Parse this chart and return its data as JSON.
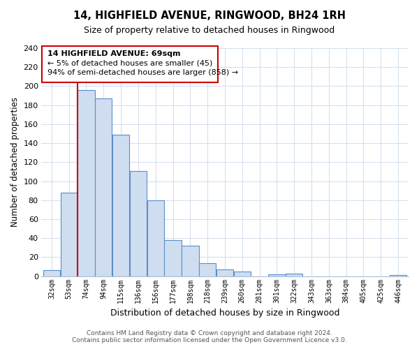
{
  "title": "14, HIGHFIELD AVENUE, RINGWOOD, BH24 1RH",
  "subtitle": "Size of property relative to detached houses in Ringwood",
  "xlabel": "Distribution of detached houses by size in Ringwood",
  "ylabel": "Number of detached properties",
  "bin_labels": [
    "32sqm",
    "53sqm",
    "74sqm",
    "94sqm",
    "115sqm",
    "136sqm",
    "156sqm",
    "177sqm",
    "198sqm",
    "218sqm",
    "239sqm",
    "260sqm",
    "281sqm",
    "301sqm",
    "322sqm",
    "343sqm",
    "363sqm",
    "384sqm",
    "405sqm",
    "425sqm",
    "446sqm"
  ],
  "bar_heights": [
    6,
    88,
    196,
    187,
    149,
    111,
    80,
    38,
    32,
    14,
    7,
    5,
    0,
    2,
    3,
    0,
    0,
    0,
    0,
    0,
    1
  ],
  "bar_color": "#cfddf0",
  "bar_edge_color": "#5b8dc8",
  "highlight_line_index": 2,
  "highlight_line_color": "#cc0000",
  "ylim": [
    0,
    240
  ],
  "yticks": [
    0,
    20,
    40,
    60,
    80,
    100,
    120,
    140,
    160,
    180,
    200,
    220,
    240
  ],
  "annotation_title": "14 HIGHFIELD AVENUE: 69sqm",
  "annotation_line1": "← 5% of detached houses are smaller (45)",
  "annotation_line2": "94% of semi-detached houses are larger (858) →",
  "annotation_box_color": "#ffffff",
  "annotation_box_edge": "#cc0000",
  "footer1": "Contains HM Land Registry data © Crown copyright and database right 2024.",
  "footer2": "Contains public sector information licensed under the Open Government Licence v3.0.",
  "grid_color": "#d5e0ee",
  "spine_color": "#b0c4d8"
}
